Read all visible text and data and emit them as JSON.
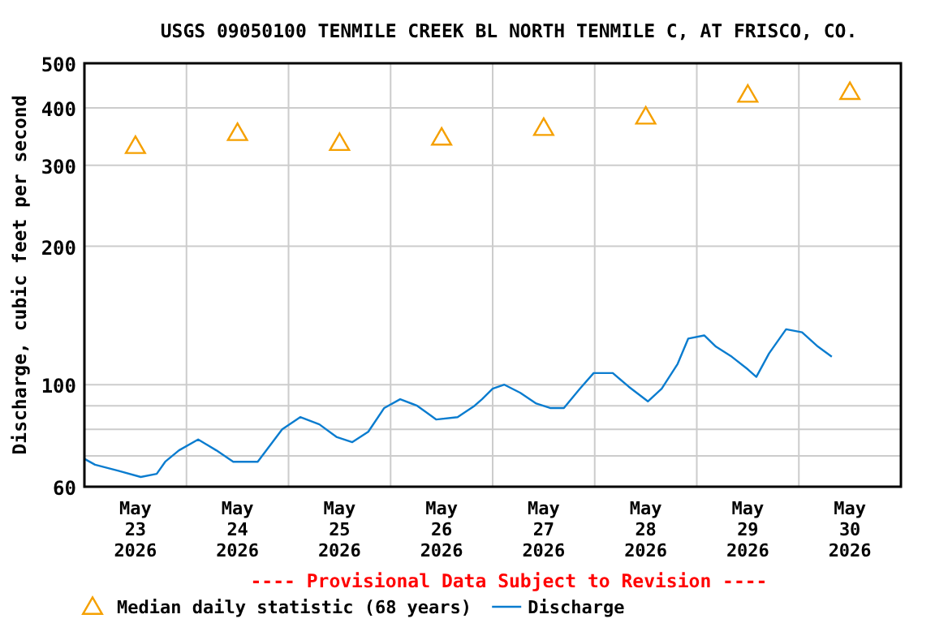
{
  "chart_data": {
    "type": "line",
    "title": "USGS 09050100 TENMILE CREEK BL NORTH TENMILE C, AT FRISCO, CO.",
    "ylabel": "Discharge, cubic feet per second",
    "annotations": [
      "---- Provisional Data Subject to Revision ----"
    ],
    "log": "y",
    "grid": true,
    "legend": "bottom",
    "xlim": [
      "2026-05-23T00:00",
      "2026-05-31T00:00"
    ],
    "xticks": [
      {
        "value": "2026-05-23T00:00",
        "label": null
      },
      {
        "value": "2026-05-23T12:00",
        "label": "May\n23\n2026"
      },
      {
        "value": "2026-05-24T00:00",
        "label": null
      },
      {
        "value": "2026-05-24T12:00",
        "label": "May\n24\n2026"
      },
      {
        "value": "2026-05-25T00:00",
        "label": null
      },
      {
        "value": "2026-05-25T12:00",
        "label": "May\n25\n2026"
      },
      {
        "value": "2026-05-26T00:00",
        "label": null
      },
      {
        "value": "2026-05-26T12:00",
        "label": "May\n26\n2026"
      },
      {
        "value": "2026-05-27T00:00",
        "label": null
      },
      {
        "value": "2026-05-27T12:00",
        "label": "May\n27\n2026"
      },
      {
        "value": "2026-05-28T00:00",
        "label": null
      },
      {
        "value": "2026-05-28T12:00",
        "label": "May\n28\n2026"
      },
      {
        "value": "2026-05-29T00:00",
        "label": null
      },
      {
        "value": "2026-05-29T12:00",
        "label": "May\n29\n2026"
      },
      {
        "value": "2026-05-30T00:00",
        "label": null
      },
      {
        "value": "2026-05-30T12:00",
        "label": "May\n30\n2026"
      }
    ],
    "ylim": [
      60,
      500
    ],
    "yticks": [
      60,
      {
        "value": 70,
        "label": null
      },
      {
        "value": 80,
        "label": null
      },
      {
        "value": 90,
        "label": null
      },
      100,
      200,
      300,
      400,
      500
    ],
    "series": [
      {
        "name": "Median daily statistic (68 years)",
        "type": "scatter",
        "marker": "triangle",
        "color": "#f5a000",
        "x": [
          "2026-05-23T12:00",
          "2026-05-24T12:00",
          "2026-05-25T12:00",
          "2026-05-26T12:00",
          "2026-05-27T12:00",
          "2026-05-28T12:00",
          "2026-05-29T12:00",
          "2026-05-30T12:00"
        ],
        "values": [
          328,
          350,
          333,
          342,
          359,
          380,
          424,
          430
        ]
      },
      {
        "name": "Discharge",
        "type": "line",
        "marker": "none",
        "line_style": "solid",
        "color": "#0a7ccf",
        "x": [
          "2026-05-23T00:00",
          "2026-05-23T02:30",
          "2026-05-23T08:00",
          "2026-05-23T13:15",
          "2026-05-23T17:00",
          "2026-05-23T19:00",
          "2026-05-23T22:15",
          "2026-05-24T02:45",
          "2026-05-24T07:00",
          "2026-05-24T11:00",
          "2026-05-24T16:45",
          "2026-05-24T22:30",
          "2026-05-25T02:45",
          "2026-05-25T07:15",
          "2026-05-25T11:15",
          "2026-05-25T15:00",
          "2026-05-25T18:45",
          "2026-05-25T22:30",
          "2026-05-26T02:15",
          "2026-05-26T06:15",
          "2026-05-26T10:45",
          "2026-05-26T15:45",
          "2026-05-26T19:45",
          "2026-05-26T21:30",
          "2026-05-27T00:00",
          "2026-05-27T02:45",
          "2026-05-27T06:30",
          "2026-05-27T10:15",
          "2026-05-27T13:30",
          "2026-05-27T16:45",
          "2026-05-27T20:30",
          "2026-05-27T23:45",
          "2026-05-28T04:15",
          "2026-05-28T08:00",
          "2026-05-28T12:30",
          "2026-05-28T15:45",
          "2026-05-28T19:30",
          "2026-05-28T22:00",
          "2026-05-29T01:45",
          "2026-05-29T04:30",
          "2026-05-29T08:15",
          "2026-05-29T12:00",
          "2026-05-29T14:00",
          "2026-05-29T17:00",
          "2026-05-29T21:00",
          "2026-05-30T00:45",
          "2026-05-30T04:30",
          "2026-05-30T07:45"
        ],
        "values": [
          69,
          67,
          65,
          63,
          64,
          68,
          72,
          76,
          72,
          68,
          68,
          80,
          85,
          82,
          77,
          75,
          79,
          89,
          93,
          90,
          84,
          85,
          90,
          93,
          98,
          100,
          96,
          91,
          89,
          89,
          98,
          106,
          106,
          99,
          92,
          98,
          111,
          126,
          128,
          121,
          115,
          108,
          104,
          117,
          132,
          130,
          121,
          115
        ]
      }
    ]
  }
}
